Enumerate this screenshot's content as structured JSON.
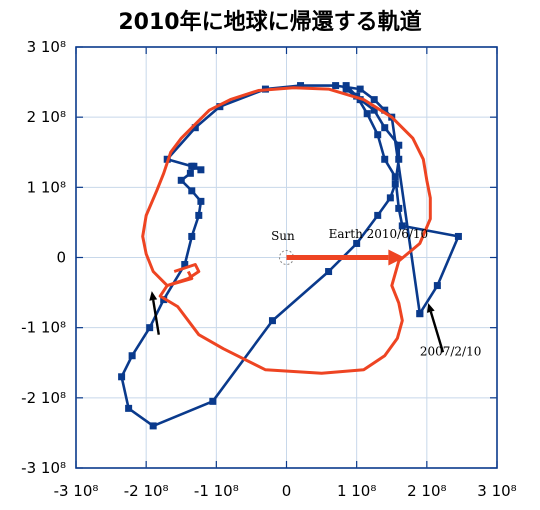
{
  "title": "2010年に地球に帰還する軌道",
  "chart_data": {
    "type": "line",
    "xlim": [
      -300000000,
      300000000
    ],
    "ylim": [
      -300000000,
      300000000
    ],
    "grid": true,
    "xticks": [
      "-3 10⁸",
      "-2 10⁸",
      "-1 10⁸",
      "0",
      "1 10⁸",
      "2 10⁸",
      "3 10⁸"
    ],
    "yticks": [
      "3 10⁸",
      "2 10⁸",
      "1 10⁸",
      "0",
      "-1 10⁸",
      "-2 10⁸",
      "-3 10⁸"
    ],
    "xtick_values": [
      -300000000,
      -200000000,
      -100000000,
      0,
      100000000,
      200000000,
      300000000
    ],
    "ytick_values": [
      300000000,
      200000000,
      100000000,
      0,
      -100000000,
      -200000000,
      -300000000
    ],
    "colors": {
      "blue": "#0a3a8c",
      "red": "#ee4422",
      "grid": "#c8d8ea"
    },
    "series": [
      {
        "color": "#0a3a8c",
        "marker": "square",
        "x": [
          190000000,
          215000000,
          245000000,
          165000000,
          160000000,
          155000000,
          140000000,
          130000000,
          115000000,
          100000000,
          85000000,
          85000000,
          105000000,
          125000000,
          140000000,
          160000000,
          160000000,
          155000000,
          148000000,
          130000000,
          100000000,
          60000000,
          -20000000,
          -105000000,
          -190000000,
          -225000000,
          -235000000,
          -220000000,
          -195000000,
          -175000000,
          -145000000,
          -135000000,
          -125000000,
          -122000000,
          -135000000,
          -150000000,
          -137000000,
          -132000000,
          -122000000,
          -135000000,
          -170000000,
          -130000000,
          -95000000,
          -30000000,
          20000000,
          70000000,
          105000000,
          125000000,
          140000000,
          150000000,
          190000000
        ],
        "y": [
          -80000000,
          -40000000,
          30000000,
          45000000,
          70000000,
          115000000,
          140000000,
          175000000,
          205000000,
          230000000,
          245000000,
          240000000,
          225000000,
          210000000,
          185000000,
          160000000,
          140000000,
          105000000,
          85000000,
          60000000,
          20000000,
          -20000000,
          -90000000,
          -205000000,
          -240000000,
          -215000000,
          -170000000,
          -140000000,
          -100000000,
          -60000000,
          -10000000,
          30000000,
          60000000,
          80000000,
          95000000,
          110000000,
          120000000,
          130000000,
          125000000,
          130000000,
          140000000,
          185000000,
          215000000,
          240000000,
          245000000,
          245000000,
          240000000,
          225000000,
          210000000,
          200000000,
          -80000000
        ]
      },
      {
        "color": "#ee4422",
        "marker": "none",
        "x": [
          -140000000,
          -135000000,
          -170000000,
          -180000000,
          -155000000,
          -125000000,
          -90000000,
          -30000000,
          50000000,
          110000000,
          140000000,
          158000000,
          165000000,
          160000000,
          150000000,
          160000000,
          190000000,
          205000000,
          205000000,
          200000000,
          195000000,
          180000000,
          150000000,
          110000000,
          60000000,
          10000000,
          -40000000,
          -80000000,
          -110000000,
          -130000000,
          -150000000,
          -165000000,
          -175000000,
          -185000000,
          -200000000,
          -205000000,
          -200000000,
          -190000000,
          -170000000,
          -140000000,
          -125000000,
          -130000000,
          -160000000
        ],
        "y": [
          -20000000,
          -30000000,
          -40000000,
          -55000000,
          -70000000,
          -110000000,
          -130000000,
          -160000000,
          -165000000,
          -160000000,
          -140000000,
          -115000000,
          -90000000,
          -65000000,
          -40000000,
          -5000000,
          20000000,
          55000000,
          85000000,
          110000000,
          140000000,
          170000000,
          200000000,
          225000000,
          240000000,
          242000000,
          238000000,
          225000000,
          210000000,
          190000000,
          170000000,
          150000000,
          120000000,
          95000000,
          60000000,
          30000000,
          5000000,
          -20000000,
          -40000000,
          -30000000,
          -20000000,
          -10000000,
          -20000000
        ]
      }
    ],
    "arrows": [
      {
        "color": "#ee4422",
        "x1": 0,
        "y1": 0,
        "x2": 168000000,
        "y2": 0
      },
      {
        "color": "#000000",
        "x1": -182000000,
        "y1": -110000000,
        "x2": -192000000,
        "y2": -48000000
      },
      {
        "color": "#000000",
        "x1": 223000000,
        "y1": -135000000,
        "x2": 202000000,
        "y2": -65000000
      }
    ],
    "annotations": [
      {
        "text": "Sun",
        "x": -22000000,
        "y": 25000000
      },
      {
        "text": "Earth 2010/6/10",
        "x": 60000000,
        "y": 28000000
      },
      {
        "text": "2007/2/10",
        "x": 190000000,
        "y": -140000000
      }
    ],
    "sun_marker": {
      "x": 0,
      "y": 0
    }
  }
}
